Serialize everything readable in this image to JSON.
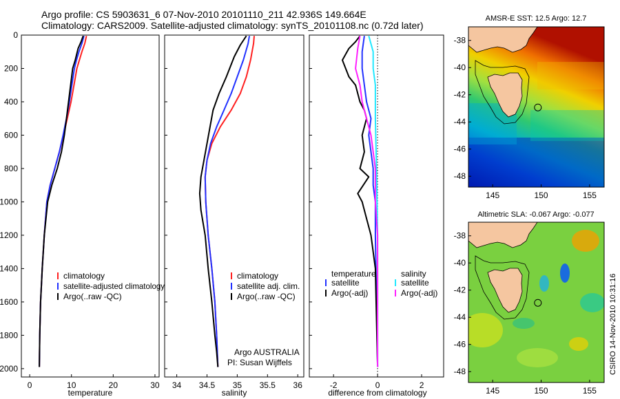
{
  "title": {
    "line1": "Argo profile: CS 5903631_6 07-Nov-2010 20101110_211 42.936S 149.664E",
    "line2": "Climatology: CARS2009. Satellite-adjusted climatology: synTS_20101108.nc (0.72d later)"
  },
  "colors": {
    "red": "#ff2020",
    "blue": "#2030ff",
    "black": "#000000",
    "cyan": "#20e8ff",
    "magenta": "#ff20ff",
    "land": "#f5c6a0"
  },
  "chart_data": [
    {
      "type": "line",
      "name": "temperature-panel",
      "xlabel": "temperature",
      "ylabel": "",
      "xlim": [
        -2,
        31
      ],
      "ylim": [
        2050,
        0
      ],
      "xticks": [
        0,
        10,
        20,
        30
      ],
      "yticks": [
        0,
        200,
        400,
        600,
        800,
        1000,
        1200,
        1400,
        1600,
        1800,
        2000
      ],
      "legend": {
        "position": "lower-right",
        "entries": [
          "climatology",
          "satellite-adjusted climatology",
          "Argo(..raw -QC)"
        ]
      },
      "series": [
        {
          "name": "climatology",
          "color": "#ff2020",
          "x": [
            13.6,
            13.2,
            12.5,
            11.9,
            11.3,
            10.6,
            9.9,
            9.0,
            8.1,
            7.1,
            6.0,
            4.9,
            4.1,
            3.5,
            3.0,
            2.6,
            2.4,
            2.3
          ],
          "y": [
            5,
            50,
            100,
            150,
            200,
            300,
            400,
            500,
            600,
            700,
            800,
            900,
            1000,
            1200,
            1400,
            1600,
            1800,
            1990
          ]
        },
        {
          "name": "satellite-adjusted climatology",
          "color": "#2030ff",
          "x": [
            13.0,
            12.5,
            11.8,
            11.2,
            10.7,
            10.1,
            9.5,
            8.8,
            8.0,
            7.1,
            6.0,
            4.9,
            4.1,
            3.5,
            3.0,
            2.6,
            2.4,
            2.3
          ],
          "y": [
            5,
            50,
            100,
            150,
            200,
            300,
            400,
            500,
            600,
            700,
            800,
            900,
            1000,
            1200,
            1400,
            1600,
            1800,
            1990
          ]
        },
        {
          "name": "Argo(..raw -QC)",
          "color": "#000000",
          "x": [
            12.8,
            12.3,
            11.6,
            10.9,
            10.3,
            9.8,
            9.3,
            8.8,
            8.3,
            7.6,
            6.6,
            5.3,
            4.3,
            3.5,
            3.0,
            2.6,
            2.4,
            2.3
          ],
          "y": [
            5,
            40,
            80,
            150,
            200,
            300,
            400,
            500,
            600,
            700,
            800,
            900,
            1000,
            1200,
            1400,
            1600,
            1800,
            1990
          ]
        }
      ]
    },
    {
      "type": "line",
      "name": "salinity-panel",
      "xlabel": "salinity",
      "ylabel": "",
      "xlim": [
        33.8,
        36.1
      ],
      "ylim": [
        2050,
        0
      ],
      "xticks": [
        34,
        34.5,
        35,
        35.5,
        36
      ],
      "legend": {
        "position": "lower-right",
        "entries": [
          "climatology",
          "satellite adj. clim.",
          "Argo(..raw -QC)"
        ]
      },
      "annotation": {
        "line1": "Argo AUSTRALIA",
        "line2": "PI: Susan Wijffels"
      },
      "series": [
        {
          "name": "climatology",
          "color": "#ff2020",
          "x": [
            35.28,
            35.27,
            35.22,
            35.15,
            35.05,
            34.9,
            34.72,
            34.58,
            34.5,
            34.47,
            34.48,
            34.52,
            34.58,
            34.63,
            34.66,
            34.68
          ],
          "y": [
            5,
            50,
            150,
            250,
            350,
            450,
            550,
            650,
            750,
            850,
            1000,
            1200,
            1400,
            1600,
            1800,
            1990
          ]
        },
        {
          "name": "satellite adj. clim.",
          "color": "#2030ff",
          "x": [
            35.2,
            35.18,
            35.1,
            35.0,
            34.9,
            34.78,
            34.66,
            34.56,
            34.5,
            34.47,
            34.48,
            34.52,
            34.58,
            34.63,
            34.66,
            34.68
          ],
          "y": [
            5,
            50,
            150,
            250,
            350,
            450,
            550,
            650,
            750,
            850,
            1000,
            1200,
            1400,
            1600,
            1800,
            1990
          ]
        },
        {
          "name": "Argo(..raw -QC)",
          "color": "#000000",
          "x": [
            35.15,
            35.05,
            34.95,
            34.82,
            34.7,
            34.6,
            34.55,
            34.5,
            34.45,
            34.4,
            34.38,
            34.4,
            34.47,
            34.52,
            34.58,
            34.63,
            34.66,
            34.68
          ],
          "y": [
            5,
            60,
            130,
            250,
            350,
            450,
            550,
            650,
            750,
            850,
            950,
            1050,
            1200,
            1400,
            1600,
            1800,
            1900,
            1990
          ]
        }
      ]
    },
    {
      "type": "line",
      "name": "difference-panel",
      "xlabel": "difference from climatology",
      "ylabel": "",
      "xlim": [
        -3.1,
        3.0
      ],
      "ylim": [
        2050,
        0
      ],
      "xticks": [
        -2,
        0,
        2
      ],
      "legend": {
        "position": "lower-right",
        "temperature_header": "temperature",
        "salinity_header": "salinity",
        "entries_left": [
          "satellite",
          "Argo(-adj)"
        ],
        "entries_right": [
          "satellite",
          "Argo(-adj)"
        ]
      },
      "series": [
        {
          "name": "temperature satellite",
          "color": "#2030ff",
          "x": [
            -0.6,
            -0.7,
            -0.7,
            -0.6,
            -0.5,
            -0.3,
            -0.4,
            -0.3,
            -0.2,
            -0.2,
            -0.1,
            -0.1,
            -0.05,
            0.0
          ],
          "y": [
            5,
            100,
            200,
            300,
            400,
            500,
            600,
            700,
            800,
            900,
            1000,
            1200,
            1600,
            1990
          ]
        },
        {
          "name": "temperature Argo(-adj)",
          "color": "#000000",
          "x": [
            -0.8,
            -1.0,
            -1.3,
            -1.6,
            -1.3,
            -1.0,
            -0.8,
            -0.6,
            -0.5,
            -0.7,
            -0.6,
            -0.8,
            -0.4,
            -0.9,
            -0.7,
            -0.5,
            -0.3,
            -0.1,
            0.0
          ],
          "y": [
            5,
            40,
            80,
            150,
            250,
            300,
            400,
            450,
            500,
            600,
            700,
            800,
            850,
            950,
            1000,
            1100,
            1200,
            1400,
            1990
          ]
        },
        {
          "name": "salinity satellite",
          "color": "#20e8ff",
          "x": [
            -0.4,
            -0.2,
            -0.2,
            -0.1,
            -0.1,
            -0.05,
            0.0,
            0.0
          ],
          "y": [
            5,
            100,
            200,
            300,
            500,
            800,
            1200,
            1990
          ]
        },
        {
          "name": "salinity Argo(-adj)",
          "color": "#ff20ff",
          "x": [
            -0.8,
            -0.9,
            -1.0,
            -0.8,
            -0.7,
            -0.5,
            -0.3,
            -0.2,
            -0.1,
            -0.1,
            0.0,
            0.0
          ],
          "y": [
            5,
            80,
            200,
            300,
            400,
            500,
            600,
            700,
            800,
            1000,
            1200,
            1990
          ]
        }
      ]
    }
  ],
  "maps": [
    {
      "name": "sst-map",
      "title": "AMSR-E SST: 12.5  Argo: 12.7",
      "xticks": [
        145,
        150,
        155
      ],
      "yticks": [
        -38,
        -40,
        -42,
        -44,
        -46,
        -48
      ],
      "xlim": [
        142.5,
        156.5
      ],
      "ylim": [
        -37,
        -48.8
      ],
      "marker": {
        "lon": 149.664,
        "lat": -42.936
      }
    },
    {
      "name": "sla-map",
      "title": "Altimetric SLA: -0.067  Argo: -0.077",
      "xticks": [
        145,
        150,
        155
      ],
      "yticks": [
        -38,
        -40,
        -42,
        -44,
        -46,
        -48
      ],
      "xlim": [
        142.5,
        156.5
      ],
      "ylim": [
        -37,
        -48.8
      ],
      "marker": {
        "lon": 149.664,
        "lat": -42.936
      }
    }
  ],
  "footer": "CSIRO 14-Nov-2010 10:31:16"
}
